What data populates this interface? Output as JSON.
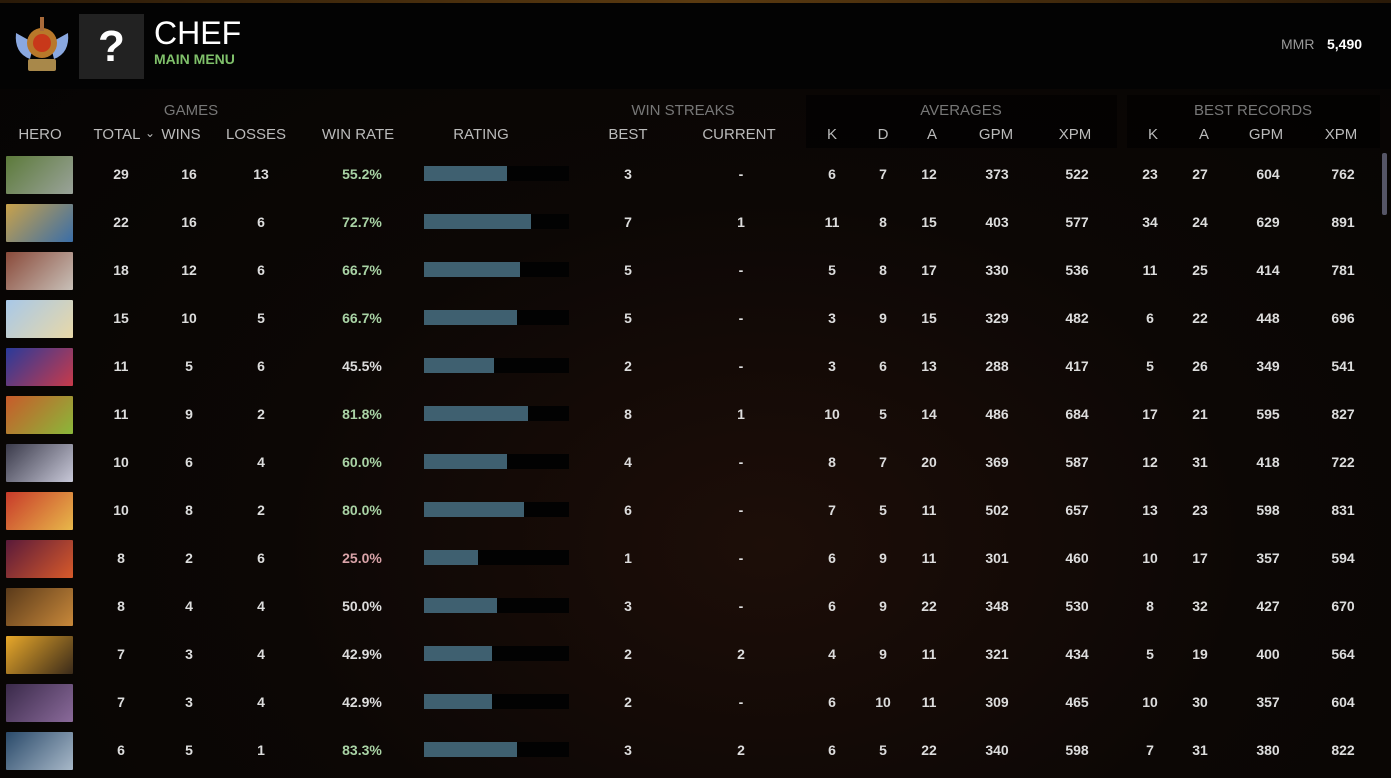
{
  "header": {
    "player_name": "CHEF",
    "status": "MAIN MENU",
    "avatar_placeholder": "?",
    "mmr_label": "MMR",
    "mmr_value": "5,490"
  },
  "groups": {
    "games": "GAMES",
    "win_streaks": "WIN STREAKS",
    "averages": "AVERAGES",
    "best_records": "BEST RECORDS"
  },
  "columns": {
    "hero": "HERO",
    "total": "TOTAL",
    "sort_indicator": "⌄",
    "wins": "WINS",
    "losses": "LOSSES",
    "win_rate": "WIN RATE",
    "rating": "RATING",
    "best": "BEST",
    "current": "CURRENT",
    "avg_k": "K",
    "avg_d": "D",
    "avg_a": "A",
    "avg_gpm": "GPM",
    "avg_xpm": "XPM",
    "best_k": "K",
    "best_a": "A",
    "best_gpm": "GPM",
    "best_xpm": "XPM"
  },
  "colors": {
    "win_rate_high": "#a9d3a5",
    "win_rate_low": "#d9a3a8",
    "rating_bar": "#3f6070",
    "status": "#7fc06a"
  },
  "rows": [
    {
      "portrait": [
        "#5c7a3a",
        "#9aa39a"
      ],
      "total": "29",
      "wins": "16",
      "losses": "13",
      "win_rate": "55.2%",
      "tone": "green",
      "rating": 0.57,
      "best": "3",
      "current": "-",
      "k": "6",
      "d": "7",
      "a": "12",
      "gpm": "373",
      "xpm": "522",
      "bk": "23",
      "ba": "27",
      "bgpm": "604",
      "bxpm": "762"
    },
    {
      "portrait": [
        "#c9a24a",
        "#3a6ea8"
      ],
      "total": "22",
      "wins": "16",
      "losses": "6",
      "win_rate": "72.7%",
      "tone": "green",
      "rating": 0.74,
      "best": "7",
      "current": "1",
      "k": "11",
      "d": "8",
      "a": "15",
      "gpm": "403",
      "xpm": "577",
      "bk": "34",
      "ba": "24",
      "bgpm": "629",
      "bxpm": "891"
    },
    {
      "portrait": [
        "#8a4a3a",
        "#c8c0b8"
      ],
      "total": "18",
      "wins": "12",
      "losses": "6",
      "win_rate": "66.7%",
      "tone": "green",
      "rating": 0.66,
      "best": "5",
      "current": "-",
      "k": "5",
      "d": "8",
      "a": "17",
      "gpm": "330",
      "xpm": "536",
      "bk": "11",
      "ba": "25",
      "bgpm": "414",
      "bxpm": "781"
    },
    {
      "portrait": [
        "#a8c8e8",
        "#e8d8a8"
      ],
      "total": "15",
      "wins": "10",
      "losses": "5",
      "win_rate": "66.7%",
      "tone": "green",
      "rating": 0.64,
      "best": "5",
      "current": "-",
      "k": "3",
      "d": "9",
      "a": "15",
      "gpm": "329",
      "xpm": "482",
      "bk": "6",
      "ba": "22",
      "bgpm": "448",
      "bxpm": "696"
    },
    {
      "portrait": [
        "#2a3a9a",
        "#c83a4a"
      ],
      "total": "11",
      "wins": "5",
      "losses": "6",
      "win_rate": "45.5%",
      "tone": "white",
      "rating": 0.48,
      "best": "2",
      "current": "-",
      "k": "3",
      "d": "6",
      "a": "13",
      "gpm": "288",
      "xpm": "417",
      "bk": "5",
      "ba": "26",
      "bgpm": "349",
      "bxpm": "541"
    },
    {
      "portrait": [
        "#c85a2a",
        "#8ab83a"
      ],
      "total": "11",
      "wins": "9",
      "losses": "2",
      "win_rate": "81.8%",
      "tone": "green",
      "rating": 0.72,
      "best": "8",
      "current": "1",
      "k": "10",
      "d": "5",
      "a": "14",
      "gpm": "486",
      "xpm": "684",
      "bk": "17",
      "ba": "21",
      "bgpm": "595",
      "bxpm": "827"
    },
    {
      "portrait": [
        "#3a3a4a",
        "#c8c8d8"
      ],
      "total": "10",
      "wins": "6",
      "losses": "4",
      "win_rate": "60.0%",
      "tone": "green",
      "rating": 0.57,
      "best": "4",
      "current": "-",
      "k": "8",
      "d": "7",
      "a": "20",
      "gpm": "369",
      "xpm": "587",
      "bk": "12",
      "ba": "31",
      "bgpm": "418",
      "bxpm": "722"
    },
    {
      "portrait": [
        "#c83a2a",
        "#e8b84a"
      ],
      "total": "10",
      "wins": "8",
      "losses": "2",
      "win_rate": "80.0%",
      "tone": "green",
      "rating": 0.69,
      "best": "6",
      "current": "-",
      "k": "7",
      "d": "5",
      "a": "11",
      "gpm": "502",
      "xpm": "657",
      "bk": "13",
      "ba": "23",
      "bgpm": "598",
      "bxpm": "831"
    },
    {
      "portrait": [
        "#5a1a3a",
        "#d85a2a"
      ],
      "total": "8",
      "wins": "2",
      "losses": "6",
      "win_rate": "25.0%",
      "tone": "pink",
      "rating": 0.37,
      "best": "1",
      "current": "-",
      "k": "6",
      "d": "9",
      "a": "11",
      "gpm": "301",
      "xpm": "460",
      "bk": "10",
      "ba": "17",
      "bgpm": "357",
      "bxpm": "594"
    },
    {
      "portrait": [
        "#5a3a1a",
        "#c8883a"
      ],
      "total": "8",
      "wins": "4",
      "losses": "4",
      "win_rate": "50.0%",
      "tone": "white",
      "rating": 0.5,
      "best": "3",
      "current": "-",
      "k": "6",
      "d": "9",
      "a": "22",
      "gpm": "348",
      "xpm": "530",
      "bk": "8",
      "ba": "32",
      "bgpm": "427",
      "bxpm": "670"
    },
    {
      "portrait": [
        "#e8a82a",
        "#3a2a1a"
      ],
      "total": "7",
      "wins": "3",
      "losses": "4",
      "win_rate": "42.9%",
      "tone": "white",
      "rating": 0.47,
      "best": "2",
      "current": "2",
      "k": "4",
      "d": "9",
      "a": "11",
      "gpm": "321",
      "xpm": "434",
      "bk": "5",
      "ba": "19",
      "bgpm": "400",
      "bxpm": "564"
    },
    {
      "portrait": [
        "#3a2a4a",
        "#8a6a9a"
      ],
      "total": "7",
      "wins": "3",
      "losses": "4",
      "win_rate": "42.9%",
      "tone": "white",
      "rating": 0.47,
      "best": "2",
      "current": "-",
      "k": "6",
      "d": "10",
      "a": "11",
      "gpm": "309",
      "xpm": "465",
      "bk": "10",
      "ba": "30",
      "bgpm": "357",
      "bxpm": "604"
    },
    {
      "portrait": [
        "#2a4a6a",
        "#a8b8c8"
      ],
      "total": "6",
      "wins": "5",
      "losses": "1",
      "win_rate": "83.3%",
      "tone": "green",
      "rating": 0.64,
      "best": "3",
      "current": "2",
      "k": "6",
      "d": "5",
      "a": "22",
      "gpm": "340",
      "xpm": "598",
      "bk": "7",
      "ba": "31",
      "bgpm": "380",
      "bxpm": "822"
    }
  ]
}
